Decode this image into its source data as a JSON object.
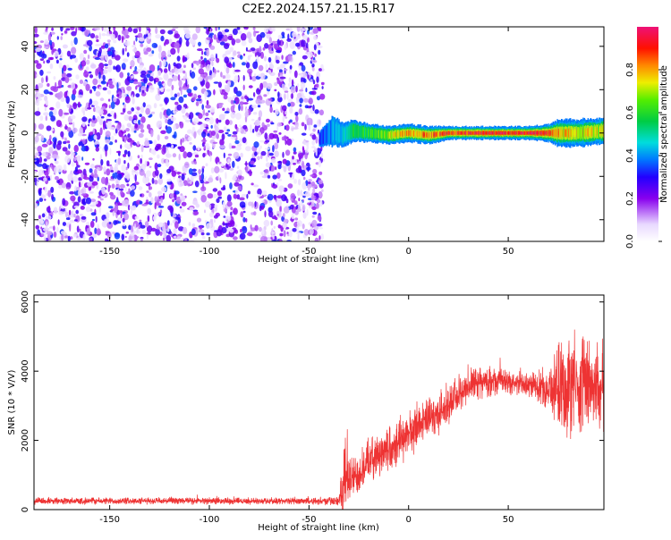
{
  "title": "C2E2.2024.157.21.15.R17",
  "chart_data": [
    {
      "type": "heatmap",
      "xlabel": "Height of straight line (km)",
      "ylabel": "Frequency (Hz)",
      "xlim": [
        -188,
        98
      ],
      "ylim": [
        -50,
        49
      ],
      "xticks": [
        -150,
        -100,
        -50,
        0,
        50
      ],
      "yticks": [
        -40,
        -20,
        0,
        20,
        40
      ],
      "grid": false,
      "noise_region": {
        "x": [
          -188,
          -43
        ],
        "y": [
          -50,
          49
        ],
        "level": [
          0.05,
          0.35
        ]
      },
      "ridge": [
        {
          "x": -45,
          "center": -3,
          "width": 3,
          "amp": 0.3
        },
        {
          "x": -42,
          "center": -1,
          "width": 5,
          "amp": 0.35
        },
        {
          "x": -38,
          "center": 1,
          "width": 7,
          "amp": 0.4
        },
        {
          "x": -33,
          "center": -1,
          "width": 5,
          "amp": 0.45
        },
        {
          "x": -28,
          "center": 1,
          "width": 5,
          "amp": 0.55
        },
        {
          "x": -20,
          "center": 0,
          "width": 4,
          "amp": 0.6
        },
        {
          "x": -10,
          "center": -1,
          "width": 4,
          "amp": 0.7
        },
        {
          "x": 0,
          "center": 0,
          "width": 4,
          "amp": 0.8
        },
        {
          "x": 10,
          "center": -1,
          "width": 4,
          "amp": 0.85
        },
        {
          "x": 20,
          "center": 0,
          "width": 3,
          "amp": 0.9
        },
        {
          "x": 30,
          "center": 0,
          "width": 3,
          "amp": 0.92
        },
        {
          "x": 40,
          "center": 0,
          "width": 3,
          "amp": 0.95
        },
        {
          "x": 50,
          "center": 0,
          "width": 3,
          "amp": 0.95
        },
        {
          "x": 60,
          "center": 0,
          "width": 3,
          "amp": 0.95
        },
        {
          "x": 70,
          "center": 0,
          "width": 4,
          "amp": 0.9
        },
        {
          "x": 75,
          "center": 0,
          "width": 6,
          "amp": 0.8
        },
        {
          "x": 85,
          "center": 0,
          "width": 6,
          "amp": 0.75
        },
        {
          "x": 98,
          "center": 1,
          "width": 6,
          "amp": 0.7
        }
      ],
      "colorbar": {
        "label": "Normalized spectral amplitude",
        "range": [
          0,
          1
        ],
        "ticks": [
          "0.0",
          "0.2",
          "0.4",
          "0.6",
          "0.8"
        ]
      }
    },
    {
      "type": "line",
      "xlabel": "Height of straight line (km)",
      "ylabel": "SNR (10 * V/V)",
      "xlim": [
        -188,
        98
      ],
      "ylim": [
        0,
        6200
      ],
      "xticks": [
        -150,
        -100,
        -50,
        0,
        50
      ],
      "yticks": [
        0,
        2000,
        4000,
        6000
      ],
      "grid": false,
      "series": [
        {
          "color": "#ee3333",
          "envelope": [
            {
              "x": -188,
              "base": 250,
              "amp": 120
            },
            {
              "x": -60,
              "base": 250,
              "amp": 110
            },
            {
              "x": -35,
              "base": 250,
              "amp": 150
            },
            {
              "x": -32,
              "base": 900,
              "amp": 1400
            },
            {
              "x": -28,
              "base": 900,
              "amp": 700
            },
            {
              "x": -20,
              "base": 1400,
              "amp": 700
            },
            {
              "x": -10,
              "base": 1800,
              "amp": 800
            },
            {
              "x": 0,
              "base": 2200,
              "amp": 800
            },
            {
              "x": 10,
              "base": 2600,
              "amp": 700
            },
            {
              "x": 20,
              "base": 3000,
              "amp": 700
            },
            {
              "x": 30,
              "base": 3600,
              "amp": 600
            },
            {
              "x": 40,
              "base": 3700,
              "amp": 500
            },
            {
              "x": 50,
              "base": 3700,
              "amp": 400
            },
            {
              "x": 60,
              "base": 3600,
              "amp": 400
            },
            {
              "x": 70,
              "base": 3500,
              "amp": 700
            },
            {
              "x": 78,
              "base": 3600,
              "amp": 1800
            },
            {
              "x": 88,
              "base": 3600,
              "amp": 1600
            },
            {
              "x": 98,
              "base": 3500,
              "amp": 1500
            }
          ]
        }
      ]
    }
  ]
}
